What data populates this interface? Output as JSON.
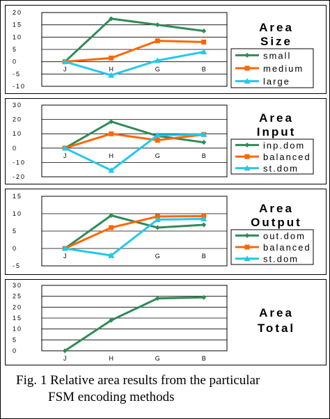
{
  "colors": {
    "green": "#2e8b57",
    "orange": "#ff6600",
    "cyan": "#22c8ef"
  },
  "chart_data": [
    {
      "type": "line",
      "title": [
        "Area",
        "Size"
      ],
      "categories": [
        "J",
        "H",
        "G",
        "B"
      ],
      "ylim": [
        -10,
        20
      ],
      "yticks": [
        -10,
        -5,
        0,
        5,
        10,
        15,
        20
      ],
      "series": [
        {
          "name": "small",
          "color": "#2e8b57",
          "marker": "diamond",
          "values": [
            0,
            17.5,
            15,
            12.5
          ]
        },
        {
          "name": "medium",
          "color": "#ff6600",
          "marker": "square",
          "values": [
            0,
            1.5,
            8.5,
            8
          ]
        },
        {
          "name": "large",
          "color": "#22c8ef",
          "marker": "triangle",
          "values": [
            0,
            -5.5,
            0.5,
            4
          ]
        }
      ]
    },
    {
      "type": "line",
      "title": [
        "Area",
        "Input"
      ],
      "categories": [
        "J",
        "H",
        "G",
        "B"
      ],
      "ylim": [
        -20,
        30
      ],
      "yticks": [
        -20,
        -10,
        0,
        10,
        20,
        30
      ],
      "series": [
        {
          "name": "inp.dom",
          "color": "#2e8b57",
          "marker": "diamond",
          "values": [
            0,
            18.5,
            8.5,
            4
          ]
        },
        {
          "name": "balanced",
          "color": "#ff6600",
          "marker": "square",
          "values": [
            0,
            10,
            5.5,
            9.5
          ]
        },
        {
          "name": "st.dom",
          "color": "#22c8ef",
          "marker": "triangle",
          "values": [
            0,
            -15.5,
            9,
            9.5
          ]
        }
      ]
    },
    {
      "type": "line",
      "title": [
        "Area",
        "Output"
      ],
      "categories": [
        "J",
        "H",
        "G",
        "B"
      ],
      "ylim": [
        -5,
        15
      ],
      "yticks": [
        -5,
        0,
        5,
        10,
        15
      ],
      "series": [
        {
          "name": "out.dom",
          "color": "#2e8b57",
          "marker": "diamond",
          "values": [
            0,
            9.5,
            6,
            6.8
          ]
        },
        {
          "name": "balanced",
          "color": "#ff6600",
          "marker": "square",
          "values": [
            0,
            6,
            9.2,
            9.3
          ]
        },
        {
          "name": "st.dom",
          "color": "#22c8ef",
          "marker": "triangle",
          "values": [
            0,
            -2,
            8.3,
            8.5
          ]
        }
      ]
    },
    {
      "type": "line",
      "title": [
        "Area",
        "Total"
      ],
      "categories": [
        "J",
        "H",
        "G",
        "B"
      ],
      "ylim": [
        0,
        30
      ],
      "yticks": [
        0,
        5,
        10,
        15,
        20,
        25,
        30
      ],
      "series": [
        {
          "color": "#2e8b57",
          "marker": "diamond",
          "values": [
            0,
            14,
            24,
            24.5
          ]
        }
      ]
    }
  ],
  "caption": {
    "line1": "Fig. 1 Relative area results from the particular",
    "line2": "FSM encoding methods"
  }
}
